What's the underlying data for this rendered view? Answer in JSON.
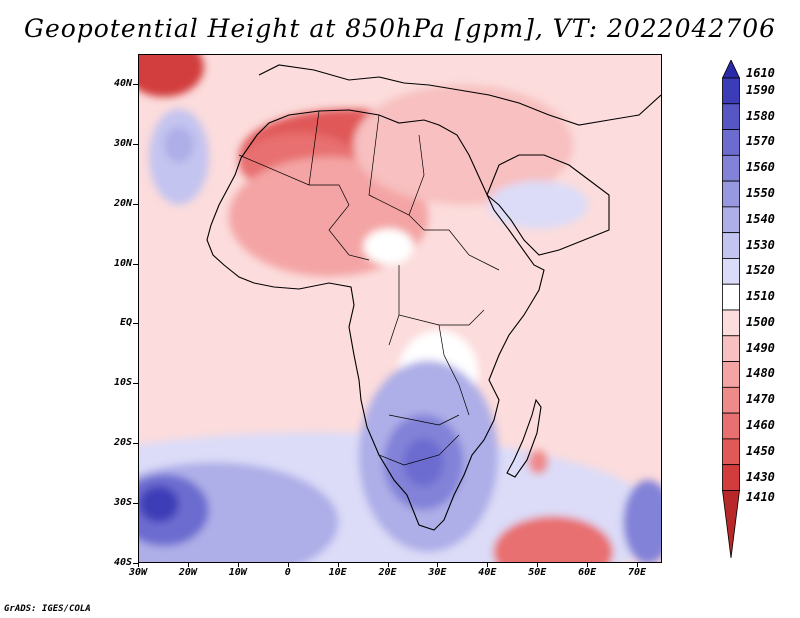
{
  "title": "Geopotential Height at 850hPa [gpm], VT: 2022042706",
  "credit": "GrADS: IGES/COLA",
  "map": {
    "lon_range": [
      -30,
      75
    ],
    "lat_range": [
      -40,
      45
    ],
    "lat_labels": [
      "40N",
      "30N",
      "20N",
      "10N",
      "EQ",
      "10S",
      "20S",
      "30S",
      "40S"
    ],
    "lat_values": [
      40,
      30,
      20,
      10,
      0,
      -10,
      -20,
      -30,
      -40
    ],
    "lon_labels": [
      "30W",
      "20W",
      "10W",
      "0",
      "10E",
      "20E",
      "30E",
      "40E",
      "50E",
      "60E",
      "70E"
    ],
    "lon_values": [
      -30,
      -20,
      -10,
      0,
      10,
      20,
      30,
      40,
      50,
      60,
      70
    ],
    "background_level": 1500,
    "anomalies": [
      {
        "lon": -25,
        "lat": 43,
        "value": 1430,
        "rx": 8,
        "ry": 5
      },
      {
        "lon": 12,
        "lat": 28,
        "value": 1450,
        "rx": 22,
        "ry": 8
      },
      {
        "lon": 2,
        "lat": 27,
        "value": 1460,
        "rx": 12,
        "ry": 5
      },
      {
        "lon": 8,
        "lat": 18,
        "value": 1480,
        "rx": 20,
        "ry": 10
      },
      {
        "lon": 35,
        "lat": 30,
        "value": 1490,
        "rx": 22,
        "ry": 10
      },
      {
        "lon": -22,
        "lat": 28,
        "value": 1530,
        "rx": 6,
        "ry": 8
      },
      {
        "lon": -22,
        "lat": 30,
        "value": 1540,
        "rx": 3,
        "ry": 3
      },
      {
        "lon": 50,
        "lat": 20,
        "value": 1520,
        "rx": 10,
        "ry": 4
      },
      {
        "lon": 20,
        "lat": 13,
        "value": 1510,
        "rx": 5,
        "ry": 3
      },
      {
        "lon": 30,
        "lat": -8,
        "value": 1510,
        "rx": 8,
        "ry": 7
      },
      {
        "lon": 5,
        "lat": -33,
        "value": 1520,
        "rx": 70,
        "ry": 15
      },
      {
        "lon": -15,
        "lat": -33,
        "value": 1540,
        "rx": 25,
        "ry": 10
      },
      {
        "lon": -25,
        "lat": -31,
        "value": 1570,
        "rx": 9,
        "ry": 6
      },
      {
        "lon": -26,
        "lat": -30,
        "value": 1590,
        "rx": 4,
        "ry": 3
      },
      {
        "lon": 28,
        "lat": -22,
        "value": 1540,
        "rx": 14,
        "ry": 16
      },
      {
        "lon": 27,
        "lat": -23,
        "value": 1560,
        "rx": 8,
        "ry": 8
      },
      {
        "lon": 27,
        "lat": -23,
        "value": 1570,
        "rx": 4,
        "ry": 4
      },
      {
        "lon": 72,
        "lat": -33,
        "value": 1560,
        "rx": 5,
        "ry": 7
      },
      {
        "lon": 53,
        "lat": -38,
        "value": 1460,
        "rx": 12,
        "ry": 6
      },
      {
        "lon": 50,
        "lat": -23,
        "value": 1470,
        "rx": 2,
        "ry": 2
      }
    ]
  },
  "colorbar": {
    "levels": [
      "1610",
      "1590",
      "1580",
      "1570",
      "1560",
      "1550",
      "1540",
      "1530",
      "1520",
      "1510",
      "1500",
      "1490",
      "1480",
      "1470",
      "1460",
      "1450",
      "1430",
      "1410"
    ],
    "colors": [
      "#2a2aa8",
      "#3c3cb8",
      "#5656c4",
      "#6c6cd0",
      "#8282d8",
      "#9898e0",
      "#aeaee8",
      "#c4c4f0",
      "#dcdcf8",
      "#ffffff",
      "#fcdcdc",
      "#f8c0c0",
      "#f4a4a4",
      "#ee8a8a",
      "#e87070",
      "#e05858",
      "#d23c3c",
      "#b82828"
    ]
  }
}
